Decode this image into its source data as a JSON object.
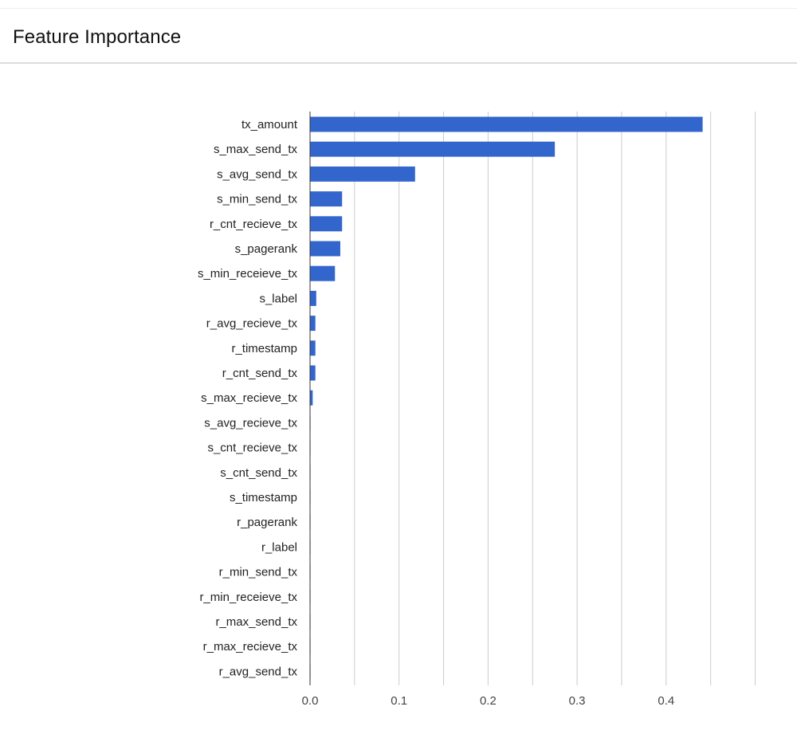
{
  "panel": {
    "title": "Feature Importance"
  },
  "colors": {
    "bar": "#3366cc",
    "grid": "#cccccc",
    "axis": "#333333"
  },
  "chart_data": {
    "type": "bar",
    "orientation": "horizontal",
    "title": "",
    "xlabel": "",
    "ylabel": "",
    "xlim": [
      0,
      0.5
    ],
    "x_ticks": [
      "0.0",
      "0.1",
      "0.2",
      "0.3",
      "0.4"
    ],
    "grid": true,
    "categories": [
      "tx_amount",
      "s_max_send_tx",
      "s_avg_send_tx",
      "s_min_send_tx",
      "r_cnt_recieve_tx",
      "s_pagerank",
      "s_min_receieve_tx",
      "s_label",
      "r_avg_recieve_tx",
      "r_timestamp",
      "r_cnt_send_tx",
      "s_max_recieve_tx",
      "s_avg_recieve_tx",
      "s_cnt_recieve_tx",
      "s_cnt_send_tx",
      "s_timestamp",
      "r_pagerank",
      "r_label",
      "r_min_send_tx",
      "r_min_receieve_tx",
      "r_max_send_tx",
      "r_max_recieve_tx",
      "r_avg_send_tx"
    ],
    "values": [
      0.441,
      0.275,
      0.118,
      0.036,
      0.036,
      0.034,
      0.028,
      0.007,
      0.006,
      0.006,
      0.006,
      0.003,
      0.0005,
      0.0005,
      0.0005,
      0.0003,
      0.0003,
      0.0003,
      0.0002,
      0.0002,
      0.0002,
      0.0002,
      0.0002
    ]
  }
}
